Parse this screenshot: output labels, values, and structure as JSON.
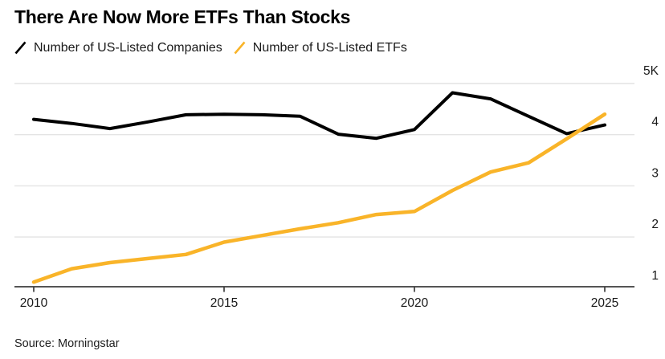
{
  "title": "There Are Now More ETFs Than Stocks",
  "legend": [
    {
      "label": "Number of US-Listed Companies",
      "color": "#000000"
    },
    {
      "label": "Number of US-Listed ETFs",
      "color": "#F9B429"
    }
  ],
  "source": "Source: Morningstar",
  "colors": {
    "accent_yellow": "#F9B429",
    "line_black": "#000000",
    "grid": "#e4e4e4",
    "axis": "#3d3d3d",
    "text": "#1a1a1a"
  },
  "chart_data": {
    "type": "line",
    "title": "There Are Now More ETFs Than Stocks",
    "xlabel": "",
    "ylabel": "",
    "x": [
      2010,
      2011,
      2012,
      2013,
      2014,
      2015,
      2016,
      2017,
      2018,
      2019,
      2020,
      2021,
      2022,
      2023,
      2024,
      2025
    ],
    "series": [
      {
        "id": "companies",
        "name": "Number of US-Listed Companies",
        "color": "#000000",
        "values": [
          4300,
          4220,
          4120,
          4250,
          4390,
          4400,
          4390,
          4360,
          4010,
          3930,
          4100,
          4820,
          4700,
          4360,
          4020,
          4190
        ]
      },
      {
        "id": "etfs",
        "name": "Number of US-Listed ETFs",
        "color": "#F9B429",
        "values": [
          1120,
          1380,
          1500,
          1580,
          1660,
          1900,
          2030,
          2160,
          2280,
          2440,
          2500,
          2910,
          3270,
          3450,
          3920,
          4400
        ]
      }
    ],
    "yticks": [
      {
        "value": 5000,
        "label": "5K"
      },
      {
        "value": 4000,
        "label": "4"
      },
      {
        "value": 3000,
        "label": "3"
      },
      {
        "value": 2000,
        "label": "2"
      },
      {
        "value": 1000,
        "label": "1"
      }
    ],
    "xticks": [
      {
        "value": 2010,
        "label": "2010"
      },
      {
        "value": 2015,
        "label": "2015"
      },
      {
        "value": 2020,
        "label": "2020"
      },
      {
        "value": 2025,
        "label": "2025"
      }
    ],
    "ylim": [
      1030,
      5000
    ],
    "xlim": [
      2010,
      2025
    ],
    "grid": "horizontal",
    "legend_position": "top-left"
  }
}
